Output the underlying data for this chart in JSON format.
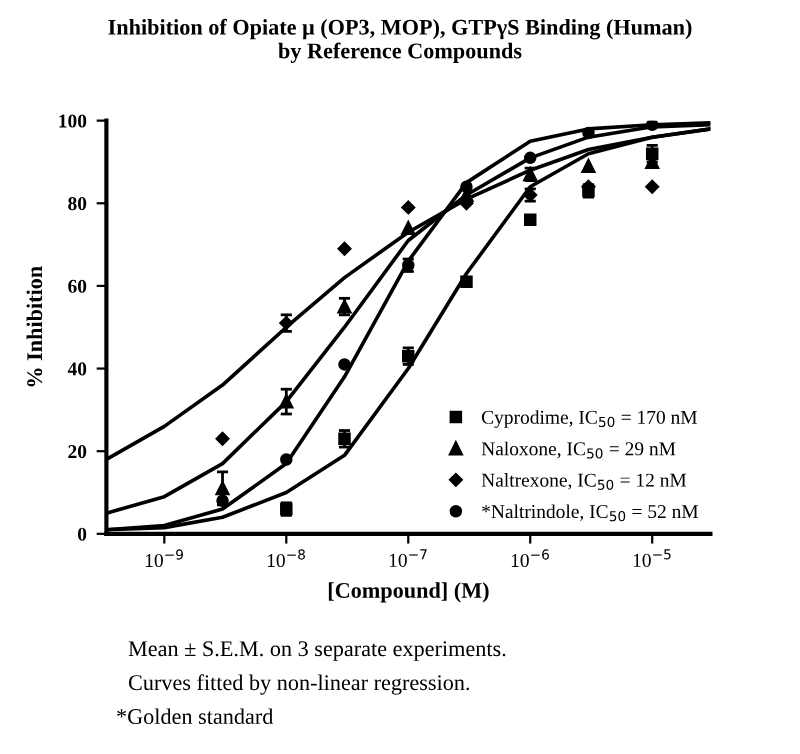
{
  "chart_data": {
    "type": "scatter",
    "title": "Inhibition of Opiate μ (OP3, MOP), GTPγS Binding (Human)\nby Reference Compounds",
    "xlabel": "[Compound] (M)",
    "ylabel": "% Inhibition",
    "log": "x",
    "grid": false,
    "legend": "bottom right",
    "xlim": [
      3.35e-10,
      3e-05
    ],
    "ylim": [
      0,
      100
    ],
    "xticks": [
      {
        "value": 1e-09,
        "label": "10$^{−9}$"
      },
      {
        "value": 1e-08,
        "label": "10$^{−8}$"
      },
      {
        "value": 1e-07,
        "label": "10$^{−7}$"
      },
      {
        "value": 1e-06,
        "label": "10$^{−6}$"
      },
      {
        "value": 1e-05,
        "label": "10$^{−5}$"
      }
    ],
    "yticks": [
      0,
      20,
      40,
      60,
      80,
      100
    ],
    "series": [
      {
        "name": "Cyprodime, IC$_{50}$ = 170 nM",
        "marker": "square",
        "color": "#000000",
        "x": [
          1e-08,
          3e-08,
          1e-07,
          3e-07,
          1e-06,
          3e-06,
          1e-05
        ],
        "values": [
          6,
          23,
          43,
          61,
          76,
          83,
          92
        ],
        "errors": [
          1.5,
          2,
          2,
          null,
          null,
          1.5,
          2
        ]
      },
      {
        "name": "Naloxone, IC$_{50}$ = 29 nM",
        "marker": "triangle",
        "color": "#000000",
        "x": [
          3e-09,
          1e-08,
          3e-08,
          1e-07,
          3e-07,
          1e-06,
          3e-06,
          1e-05
        ],
        "values": [
          11,
          32,
          55,
          74,
          82,
          87,
          89,
          90
        ],
        "errors": [
          4,
          3,
          2,
          null,
          null,
          1.5,
          null,
          null
        ]
      },
      {
        "name": "Naltrexone, IC$_{50}$ = 12 nM",
        "marker": "diamond",
        "color": "#000000",
        "x": [
          3e-09,
          1e-08,
          3e-08,
          1e-07,
          3e-07,
          1e-06,
          3e-06,
          1e-05
        ],
        "values": [
          23,
          51,
          69,
          79,
          80,
          82,
          84,
          84
        ],
        "errors": [
          null,
          2,
          null,
          null,
          null,
          1.5,
          null,
          null
        ]
      },
      {
        "name": "*Naltrindole, IC$_{50}$ = 52 nM",
        "marker": "circle",
        "color": "#000000",
        "x": [
          3e-09,
          1e-08,
          3e-08,
          1e-07,
          3e-07,
          1e-06,
          3e-06,
          1e-05
        ],
        "values": [
          8,
          18,
          41,
          65,
          84,
          91,
          97,
          99
        ],
        "errors": [
          null,
          null,
          null,
          1.5,
          null,
          null,
          null,
          null
        ]
      },
      {
        "type": "line",
        "marker": "none",
        "line_style": "solid",
        "color": "#000000",
        "x": [
          3.35e-10,
          1e-09,
          3e-09,
          1e-08,
          3e-08,
          1e-07,
          3e-07,
          1e-06,
          3e-06,
          1e-05,
          3e-05
        ],
        "values": [
          1,
          1.5,
          4,
          10,
          19,
          40,
          63,
          84,
          92,
          96,
          98
        ]
      },
      {
        "type": "line",
        "marker": "none",
        "line_style": "solid",
        "color": "#000000",
        "x": [
          3.35e-10,
          1e-09,
          3e-09,
          1e-08,
          3e-08,
          1e-07,
          3e-07,
          1e-06,
          3e-06,
          1e-05,
          3e-05
        ],
        "values": [
          5,
          9,
          17,
          32,
          50,
          71,
          82,
          91,
          96,
          98.5,
          99
        ]
      },
      {
        "type": "line",
        "marker": "none",
        "line_style": "solid",
        "color": "#000000",
        "x": [
          3.35e-10,
          1e-09,
          3e-09,
          1e-08,
          3e-08,
          1e-07,
          3e-07,
          1e-06,
          3e-06,
          1e-05,
          3e-05
        ],
        "values": [
          18,
          26,
          36,
          50,
          62,
          73,
          81,
          88,
          93,
          96,
          98
        ]
      },
      {
        "type": "line",
        "marker": "none",
        "line_style": "solid",
        "color": "#000000",
        "x": [
          3.35e-10,
          1e-09,
          3e-09,
          1e-08,
          3e-08,
          1e-07,
          3e-07,
          1e-06,
          3e-06,
          1e-05,
          3e-05
        ],
        "values": [
          1,
          2,
          6,
          17,
          38,
          66,
          85,
          95,
          98,
          99,
          99.5
        ]
      }
    ],
    "annotations": [
      "Mean ± S.E.M. on 3 separate experiments.",
      "Curves fitted by non-linear regression.",
      "*Golden standard"
    ]
  }
}
